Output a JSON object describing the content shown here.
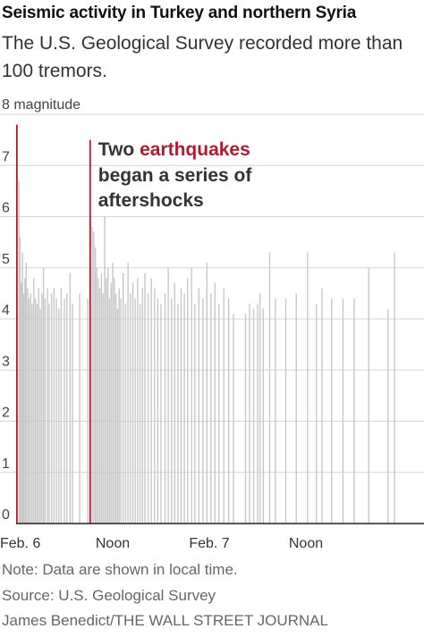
{
  "chart_data": {
    "type": "bar",
    "title": "Seismic activity in Turkey and northern Syria",
    "subtitle": "The U.S. Geological Survey recorded more than 100 tremors.",
    "ylabel": "8 magnitude",
    "ylim": [
      0,
      8
    ],
    "yticks": [
      "0",
      "1",
      "2",
      "3",
      "4",
      "5",
      "6",
      "7"
    ],
    "xlim": [
      0,
      50
    ],
    "xlim_note": "hours since Feb. 6, 00:00 local time",
    "xticks": [
      {
        "label": "Feb. 6",
        "x": 0
      },
      {
        "label": "Noon",
        "x": 12
      },
      {
        "label": "Feb. 7",
        "x": 24
      },
      {
        "label": "Noon",
        "x": 36
      }
    ],
    "annotation": {
      "prefix": "Two ",
      "highlight": "earthquakes",
      "rest_lines": [
        "began a series of",
        "aftershocks"
      ]
    },
    "colors": {
      "main": "#b01c2e",
      "aftershock": "#c8c8c8",
      "grid": "#d6d6d6",
      "axis": "#222222"
    },
    "main_quakes": [
      {
        "x": 0.1,
        "magnitude": 7.8
      },
      {
        "x": 9.2,
        "magnitude": 7.5
      }
    ],
    "aftershocks": [
      {
        "x": 0.35,
        "magnitude": 6.7
      },
      {
        "x": 0.5,
        "magnitude": 5.6
      },
      {
        "x": 0.65,
        "magnitude": 4.7
      },
      {
        "x": 0.8,
        "magnitude": 5.3
      },
      {
        "x": 0.95,
        "magnitude": 4.5
      },
      {
        "x": 1.1,
        "magnitude": 4.8
      },
      {
        "x": 1.25,
        "magnitude": 5.1
      },
      {
        "x": 1.45,
        "magnitude": 4.6
      },
      {
        "x": 1.6,
        "magnitude": 4.4
      },
      {
        "x": 1.8,
        "magnitude": 4.5
      },
      {
        "x": 2.0,
        "magnitude": 4.3
      },
      {
        "x": 2.2,
        "magnitude": 4.8
      },
      {
        "x": 2.4,
        "magnitude": 4.4
      },
      {
        "x": 2.6,
        "magnitude": 4.3
      },
      {
        "x": 2.8,
        "magnitude": 4.6
      },
      {
        "x": 3.0,
        "magnitude": 4.2
      },
      {
        "x": 3.2,
        "magnitude": 4.5
      },
      {
        "x": 3.4,
        "magnitude": 5.0
      },
      {
        "x": 3.6,
        "magnitude": 4.4
      },
      {
        "x": 3.9,
        "magnitude": 4.6
      },
      {
        "x": 4.1,
        "magnitude": 4.3
      },
      {
        "x": 4.4,
        "magnitude": 4.5
      },
      {
        "x": 4.7,
        "magnitude": 4.6
      },
      {
        "x": 5.0,
        "magnitude": 4.4
      },
      {
        "x": 5.3,
        "magnitude": 4.2
      },
      {
        "x": 5.6,
        "magnitude": 4.6
      },
      {
        "x": 6.0,
        "magnitude": 4.4
      },
      {
        "x": 6.3,
        "magnitude": 4.5
      },
      {
        "x": 6.7,
        "magnitude": 4.9
      },
      {
        "x": 7.0,
        "magnitude": 4.3
      },
      {
        "x": 7.9,
        "magnitude": 4.5
      },
      {
        "x": 8.9,
        "magnitude": 4.4
      },
      {
        "x": 9.45,
        "magnitude": 5.8
      },
      {
        "x": 9.65,
        "magnitude": 5.7
      },
      {
        "x": 9.85,
        "magnitude": 5.4
      },
      {
        "x": 10.0,
        "magnitude": 5.0
      },
      {
        "x": 10.2,
        "magnitude": 4.8
      },
      {
        "x": 10.4,
        "magnitude": 4.6
      },
      {
        "x": 10.6,
        "magnitude": 4.9
      },
      {
        "x": 10.8,
        "magnitude": 4.5
      },
      {
        "x": 11.0,
        "magnitude": 6.0
      },
      {
        "x": 11.2,
        "magnitude": 4.8
      },
      {
        "x": 11.4,
        "magnitude": 5.0
      },
      {
        "x": 11.6,
        "magnitude": 4.4
      },
      {
        "x": 11.8,
        "magnitude": 4.7
      },
      {
        "x": 12.0,
        "magnitude": 5.1
      },
      {
        "x": 12.2,
        "magnitude": 4.8
      },
      {
        "x": 12.4,
        "magnitude": 4.5
      },
      {
        "x": 12.6,
        "magnitude": 4.2
      },
      {
        "x": 12.8,
        "magnitude": 4.6
      },
      {
        "x": 13.0,
        "magnitude": 4.4
      },
      {
        "x": 13.3,
        "magnitude": 4.9
      },
      {
        "x": 13.6,
        "magnitude": 4.3
      },
      {
        "x": 13.9,
        "magnitude": 5.1
      },
      {
        "x": 14.2,
        "magnitude": 4.5
      },
      {
        "x": 14.5,
        "magnitude": 4.7
      },
      {
        "x": 14.8,
        "magnitude": 4.4
      },
      {
        "x": 15.1,
        "magnitude": 4.8
      },
      {
        "x": 15.4,
        "magnitude": 4.3
      },
      {
        "x": 15.7,
        "magnitude": 4.6
      },
      {
        "x": 16.0,
        "magnitude": 4.9
      },
      {
        "x": 16.4,
        "magnitude": 4.5
      },
      {
        "x": 16.8,
        "magnitude": 4.8
      },
      {
        "x": 17.2,
        "magnitude": 4.6
      },
      {
        "x": 17.6,
        "magnitude": 4.4
      },
      {
        "x": 18.0,
        "magnitude": 4.3
      },
      {
        "x": 18.5,
        "magnitude": 4.5
      },
      {
        "x": 18.9,
        "magnitude": 5.0
      },
      {
        "x": 19.3,
        "magnitude": 4.4
      },
      {
        "x": 19.7,
        "magnitude": 4.7
      },
      {
        "x": 20.1,
        "magnitude": 4.3
      },
      {
        "x": 20.5,
        "magnitude": 4.6
      },
      {
        "x": 20.9,
        "magnitude": 4.5
      },
      {
        "x": 21.3,
        "magnitude": 4.8
      },
      {
        "x": 21.8,
        "magnitude": 5.0
      },
      {
        "x": 22.2,
        "magnitude": 4.3
      },
      {
        "x": 22.7,
        "magnitude": 4.6
      },
      {
        "x": 23.2,
        "magnitude": 4.4
      },
      {
        "x": 23.7,
        "magnitude": 5.1
      },
      {
        "x": 24.2,
        "magnitude": 4.5
      },
      {
        "x": 24.7,
        "magnitude": 4.7
      },
      {
        "x": 25.2,
        "magnitude": 4.3
      },
      {
        "x": 25.8,
        "magnitude": 4.6
      },
      {
        "x": 26.4,
        "magnitude": 4.4
      },
      {
        "x": 27.0,
        "magnitude": 4.1
      },
      {
        "x": 28.5,
        "magnitude": 4.1
      },
      {
        "x": 29.0,
        "magnitude": 4.3
      },
      {
        "x": 29.5,
        "magnitude": 4.2
      },
      {
        "x": 30.0,
        "magnitude": 4.3
      },
      {
        "x": 30.3,
        "magnitude": 4.5
      },
      {
        "x": 30.7,
        "magnitude": 4.2
      },
      {
        "x": 31.5,
        "magnitude": 5.3
      },
      {
        "x": 32.2,
        "magnitude": 4.4
      },
      {
        "x": 33.5,
        "magnitude": 4.4
      },
      {
        "x": 34.8,
        "magnitude": 4.5
      },
      {
        "x": 36.2,
        "magnitude": 5.3
      },
      {
        "x": 37.3,
        "magnitude": 4.3
      },
      {
        "x": 38.0,
        "magnitude": 4.6
      },
      {
        "x": 39.2,
        "magnitude": 4.4
      },
      {
        "x": 40.6,
        "magnitude": 4.4
      },
      {
        "x": 42.0,
        "magnitude": 4.4
      },
      {
        "x": 43.8,
        "magnitude": 5.0
      },
      {
        "x": 46.2,
        "magnitude": 4.2
      },
      {
        "x": 47.0,
        "magnitude": 5.3
      }
    ]
  },
  "footer": {
    "note": "Note: Data are shown in local time.",
    "source": "Source: U.S. Geological Survey",
    "credit": "James Benedict/THE WALL STREET JOURNAL"
  }
}
